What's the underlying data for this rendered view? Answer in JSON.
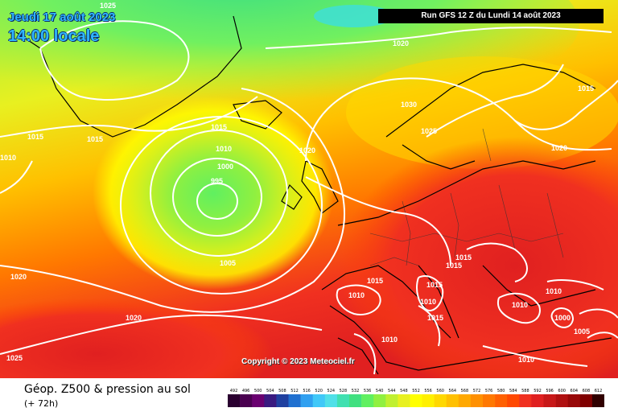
{
  "header": {
    "date": "Jeudi 17 août 2023",
    "time": "14:00 locale",
    "run": "Run GFS 12 Z du Lundi 14 août 2023"
  },
  "copyright": "Copyright © 2023 Meteociel.fr",
  "footer": {
    "title": "Géop. Z500 & pression au sol",
    "subtitle": "(+ 72h)"
  },
  "legend": {
    "ticks": [
      "492",
      "496",
      "500",
      "504",
      "508",
      "512",
      "516",
      "520",
      "524",
      "528",
      "532",
      "536",
      "540",
      "544",
      "548",
      "552",
      "556",
      "560",
      "564",
      "568",
      "572",
      "576",
      "580",
      "584",
      "588",
      "592",
      "596",
      "600",
      "604",
      "608",
      "612"
    ],
    "colors": [
      "#2a0030",
      "#4a0050",
      "#6a0070",
      "#3a1a80",
      "#2040a0",
      "#2070d0",
      "#30a0f0",
      "#40c8f8",
      "#50e0e8",
      "#40e0b0",
      "#40e080",
      "#60f060",
      "#90f040",
      "#c0f030",
      "#e8f020",
      "#ffff00",
      "#fff000",
      "#ffd800",
      "#ffc000",
      "#ffa800",
      "#ff9000",
      "#ff7800",
      "#ff6000",
      "#ff4800",
      "#f03020",
      "#e02020",
      "#c81818",
      "#b01010",
      "#980808",
      "#800000",
      "#300000"
    ]
  },
  "isobars": [
    "1025",
    "1020",
    "1015",
    "1015",
    "1010",
    "1010",
    "1005",
    "1000",
    "995",
    "1020",
    "1015",
    "1030",
    "1025",
    "1020",
    "1015",
    "1020",
    "1015",
    "1015",
    "1010",
    "1015",
    "1015",
    "1010",
    "1010",
    "1010",
    "1000",
    "1005",
    "1015",
    "1020",
    "1025",
    "1010",
    "1010"
  ]
}
